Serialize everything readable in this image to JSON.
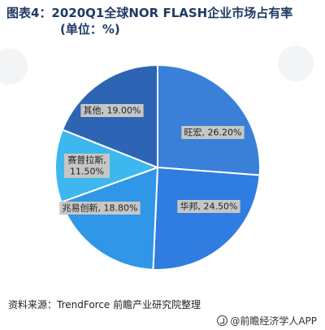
{
  "title_line1": "图表4：2020Q1全球NOR FLASH企业市场占有率",
  "title_line2": "(单位：%)",
  "source": "资料来源：TrendForce 前瞻产业研究院整理",
  "watermark": "@前瞻经济学人APP",
  "chart_data": {
    "type": "pie",
    "title": "图表4：2020Q1全球NOR FLASH企业市场占有率 (单位：%)",
    "slices": [
      {
        "label": "旺宏, 26.20%",
        "name": "旺宏",
        "value": 26.2,
        "color": "#3a80d8"
      },
      {
        "label": "华邦, 24.50%",
        "name": "华邦",
        "value": 24.5,
        "color": "#2f7de0"
      },
      {
        "label": "兆易创新, 18.80%",
        "name": "兆易创新",
        "value": 18.8,
        "color": "#2f96e8"
      },
      {
        "label": "赛普拉斯,\n11.50%",
        "name": "赛普拉斯",
        "value": 11.5,
        "color": "#3db7ee"
      },
      {
        "label": "其他, 19.00%",
        "name": "其他",
        "value": 19.0,
        "color": "#2e64b4"
      }
    ]
  }
}
